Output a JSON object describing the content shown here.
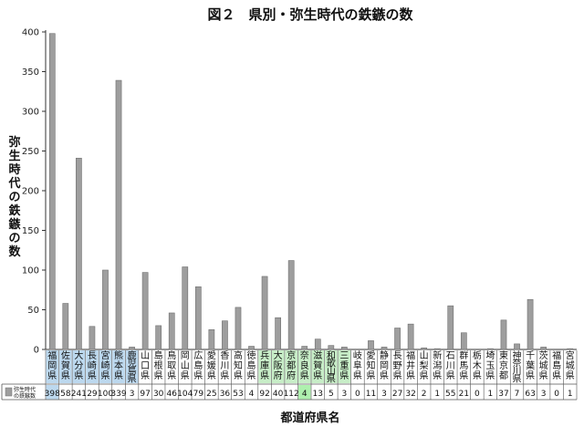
{
  "chart_data": {
    "type": "bar",
    "title": "図２　県別・弥生時代の鉄鏃の数",
    "ylabel": "弥生時代の鉄鏃の数",
    "xlabel": "都道府県名",
    "ylim": [
      0,
      400
    ],
    "yticks": [
      0,
      50,
      100,
      150,
      200,
      250,
      300,
      350,
      400
    ],
    "grid": false,
    "legend": {
      "position": "bottom-left",
      "label_line1": "弥生時代",
      "label_line2": "の鉄鏃"
    },
    "categories": [
      "福岡県",
      "佐賀県",
      "大分県",
      "長崎県",
      "宮崎県",
      "熊本県",
      "鹿児島県",
      "山口県",
      "島根県",
      "鳥取県",
      "岡山県",
      "広島県",
      "愛媛県",
      "香川県",
      "高知県",
      "徳島県",
      "兵庫県",
      "大阪府",
      "京都府",
      "奈良県",
      "滋賀県",
      "和歌山県",
      "三重県",
      "岐阜県",
      "愛知県",
      "静岡県",
      "長野県",
      "福井県",
      "山梨県",
      "新潟県",
      "石川県",
      "群馬県",
      "栃木県",
      "埼玉県",
      "東京都",
      "神奈川県",
      "千葉県",
      "茨城県",
      "福島県",
      "宮城県"
    ],
    "category_display": [
      "福岡県",
      "佐賀県",
      "大分県",
      "長崎県",
      "宮崎県",
      "熊本県",
      "鹿児島県",
      "山口県",
      "島根県",
      "鳥取県",
      "岡山県",
      "広島県",
      "愛媛県",
      "香川県",
      "高知県",
      "徳島県",
      "兵庫県",
      "大阪府",
      "京都府",
      "奈良県",
      "滋賀県",
      "和歌山県",
      "三重県",
      "岐阜県",
      "愛知県",
      "静岡県",
      "長野県",
      "福井県",
      "山梨県",
      "新潟県",
      "石川県",
      "群馬県",
      "栃木県",
      "埼玉県",
      "東京都",
      "神奈川県",
      "千葉県",
      "茨城県",
      "福島県",
      "宮城県"
    ],
    "values": [
      398,
      58,
      241,
      29,
      100,
      339,
      3,
      97,
      30,
      46,
      104,
      79,
      25,
      36,
      53,
      4,
      92,
      40,
      112,
      4,
      13,
      5,
      3,
      0,
      11,
      3,
      27,
      32,
      2,
      1,
      55,
      21,
      0,
      1,
      37,
      7,
      63,
      3,
      0,
      1
    ],
    "value_labels": [
      "398",
      "58",
      "241",
      "29",
      "100",
      "339",
      "3",
      "97",
      "30",
      "46",
      "104",
      "79",
      "25",
      "36",
      "53",
      "4",
      "92",
      "40",
      "112",
      "4",
      "13",
      "5",
      "3",
      "0",
      "11",
      "3",
      "27",
      "32",
      "2",
      "1",
      "55",
      "21",
      "0",
      "1",
      "37",
      "7",
      "63",
      "3",
      "0",
      "1"
    ],
    "highlight": [
      "blue",
      "blue",
      "blue",
      "blue",
      "blue",
      "blue",
      "blue",
      "",
      "",
      "",
      "",
      "",
      "",
      "",
      "",
      "",
      "green",
      "green",
      "green",
      "green",
      "green",
      "green",
      "green",
      "",
      "",
      "",
      "",
      "",
      "",
      "",
      "",
      "",
      "",
      "",
      "",
      "",
      "",
      "",
      "",
      ""
    ],
    "colors": {
      "bar": "#9e9e9e",
      "bar_edge": "#6f6f6f",
      "blue_highlight": "#bcd8ee",
      "green_highlight": "#c7edc7",
      "green_value_cell": "#aef0ae",
      "blue_value_cell": "#bcd8ee"
    },
    "value_cell_highlight": [
      "blue",
      "",
      "",
      "",
      "",
      "",
      "",
      "",
      "",
      "",
      "",
      "",
      "",
      "",
      "",
      "",
      "",
      "",
      "",
      "green",
      "",
      "",
      "",
      "",
      "",
      "",
      "",
      "",
      "",
      "",
      "",
      "",
      "",
      "",
      "",
      "",
      "",
      "",
      "",
      ""
    ]
  }
}
